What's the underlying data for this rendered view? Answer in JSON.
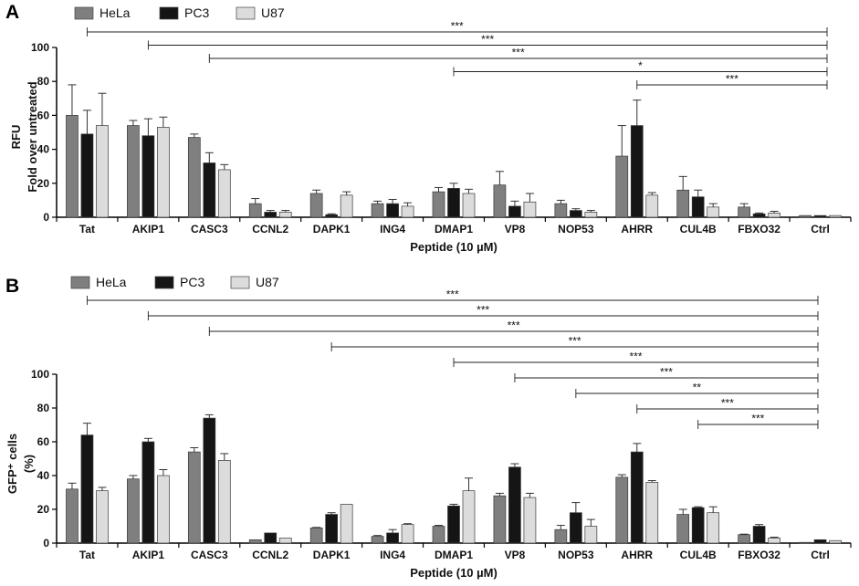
{
  "figure": {
    "panels": [
      {
        "letter": "A"
      },
      {
        "letter": "B"
      }
    ]
  },
  "colors": {
    "HeLa": "#7f7f7f",
    "PC3": "#151515",
    "U87": "#dcdcdc"
  },
  "chart_data": [
    {
      "type": "bar",
      "panel": "A",
      "xlabel": "Peptide (10 µM)",
      "ylabel_lines": [
        "RFU",
        "Fold over untreated"
      ],
      "ylim": [
        0,
        100
      ],
      "yticks": [
        "0",
        "20",
        "40",
        "60",
        "80",
        "100"
      ],
      "categories": [
        "Tat",
        "AKIP1",
        "CASC3",
        "CCNL2",
        "DAPK1",
        "ING4",
        "DMAP1",
        "VP8",
        "NOP53",
        "AHRR",
        "CUL4B",
        "FBXO32",
        "Ctrl"
      ],
      "legend": [
        "HeLa",
        "PC3",
        "U87"
      ],
      "series": [
        {
          "name": "HeLa",
          "values": [
            60,
            54,
            47,
            8,
            14,
            8,
            15,
            19,
            8,
            36,
            16,
            6,
            1
          ],
          "errors": [
            18,
            3,
            2,
            3,
            2,
            1.5,
            2.5,
            8,
            2,
            18,
            8,
            2,
            0
          ]
        },
        {
          "name": "PC3",
          "values": [
            49,
            48,
            32,
            3,
            1.5,
            8,
            17,
            6.5,
            4,
            54,
            12,
            2,
            1
          ],
          "errors": [
            14,
            10,
            6,
            1,
            0.5,
            2.5,
            3,
            3,
            1,
            15,
            4,
            0.5,
            0
          ]
        },
        {
          "name": "U87",
          "values": [
            54,
            53,
            28,
            3,
            13,
            6.5,
            14,
            9,
            3,
            13,
            6,
            2.5,
            1
          ],
          "errors": [
            19,
            6,
            3,
            1,
            2,
            2,
            2.5,
            5,
            1,
            1.5,
            2,
            1,
            0
          ]
        }
      ],
      "significance": [
        {
          "from": "Tat",
          "to": "Ctrl",
          "label": "***"
        },
        {
          "from": "AKIP1",
          "to": "Ctrl",
          "label": "***"
        },
        {
          "from": "CASC3",
          "to": "Ctrl",
          "label": "***"
        },
        {
          "from": "DMAP1",
          "to": "Ctrl",
          "label": "*"
        },
        {
          "from": "AHRR",
          "to": "Ctrl",
          "label": "***"
        }
      ]
    },
    {
      "type": "bar",
      "panel": "B",
      "xlabel": "Peptide (10 µM)",
      "ylabel_lines": [
        "GFP⁺ cells",
        "(%)"
      ],
      "ylim": [
        0,
        100
      ],
      "yticks": [
        "0",
        "20",
        "40",
        "60",
        "80",
        "100"
      ],
      "categories": [
        "Tat",
        "AKIP1",
        "CASC3",
        "CCNL2",
        "DAPK1",
        "ING4",
        "DMAP1",
        "VP8",
        "NOP53",
        "AHRR",
        "CUL4B",
        "FBXO32",
        "Ctrl"
      ],
      "legend": [
        "HeLa",
        "PC3",
        "U87"
      ],
      "series": [
        {
          "name": "HeLa",
          "values": [
            32,
            38,
            54,
            2,
            9,
            4,
            10,
            28,
            8,
            39,
            17,
            5,
            0
          ],
          "errors": [
            3.5,
            2,
            2.5,
            0,
            0.3,
            0.5,
            0.5,
            1.5,
            2.5,
            1.5,
            3,
            0.3,
            0
          ]
        },
        {
          "name": "PC3",
          "values": [
            64,
            60,
            74,
            6,
            17,
            6,
            22,
            45,
            18,
            54,
            21,
            10,
            2
          ],
          "errors": [
            7,
            2,
            2,
            0,
            1,
            2,
            1,
            2,
            6,
            5,
            0.5,
            1,
            0
          ]
        },
        {
          "name": "U87",
          "values": [
            31,
            40,
            49,
            3,
            23,
            11,
            31,
            27,
            10,
            36,
            18,
            3,
            1.5
          ],
          "errors": [
            2,
            3.5,
            4,
            0,
            0,
            0.5,
            7.5,
            2.5,
            4,
            1,
            3.5,
            0.5,
            0
          ]
        }
      ],
      "significance": [
        {
          "from": "Tat",
          "to": "Ctrl",
          "label": "***"
        },
        {
          "from": "AKIP1",
          "to": "Ctrl",
          "label": "***"
        },
        {
          "from": "CASC3",
          "to": "Ctrl",
          "label": "***"
        },
        {
          "from": "DAPK1",
          "to": "Ctrl",
          "label": "***"
        },
        {
          "from": "DMAP1",
          "to": "Ctrl",
          "label": "***"
        },
        {
          "from": "VP8",
          "to": "Ctrl",
          "label": "***"
        },
        {
          "from": "NOP53",
          "to": "Ctrl",
          "label": "**"
        },
        {
          "from": "AHRR",
          "to": "Ctrl",
          "label": "***"
        },
        {
          "from": "CUL4B",
          "to": "Ctrl",
          "label": "***"
        }
      ]
    }
  ]
}
